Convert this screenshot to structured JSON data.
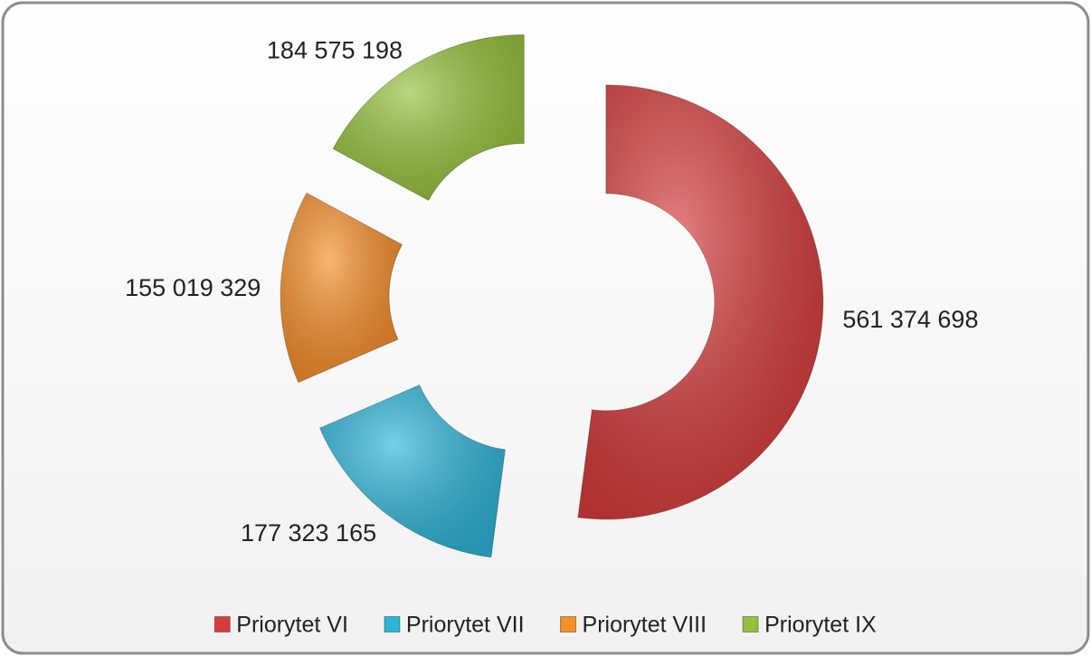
{
  "chart_data": {
    "type": "donut",
    "categories": [
      "Priorytet VI",
      "Priorytet VII",
      "Priorytet VIII",
      "Priorytet IX"
    ],
    "values": [
      561374698,
      177323165,
      155019329,
      184575198
    ],
    "value_labels": [
      "561 374 698",
      "177 323 165",
      "155 019 329",
      "184 575 198"
    ],
    "colors": [
      "#d63c3c",
      "#2fb5d8",
      "#f68f2a",
      "#95c23c"
    ],
    "legend": "bottom"
  }
}
